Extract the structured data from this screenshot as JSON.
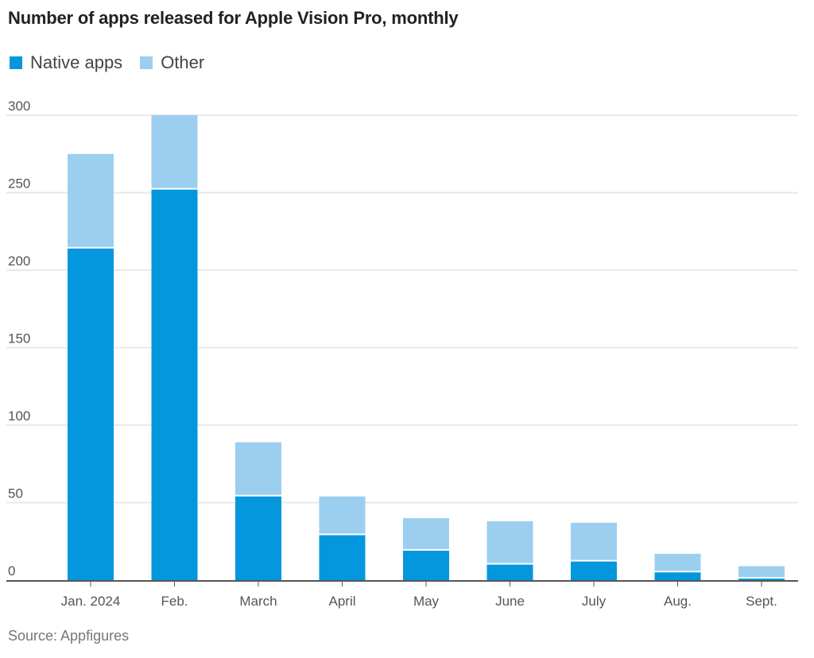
{
  "title": "Number of apps released for Apple Vision Pro, monthly",
  "source": "Source: Appfigures",
  "colors": {
    "native": "#0597de",
    "other": "#9ccfef",
    "grid": "#e9e9e9",
    "axis": "#555555"
  },
  "chart_data": {
    "type": "bar",
    "stacked": true,
    "title": "Number of apps released for Apple Vision Pro, monthly",
    "categories": [
      "Jan. 2024",
      "Feb.",
      "March",
      "April",
      "May",
      "June",
      "July",
      "Aug.",
      "Sept."
    ],
    "series": [
      {
        "name": "Native apps",
        "values": [
          214,
          252,
          54,
          29,
          19,
          10,
          12,
          5,
          1
        ]
      },
      {
        "name": "Other",
        "values": [
          61,
          48,
          35,
          25,
          21,
          28,
          25,
          12,
          8
        ]
      }
    ],
    "yticks": [
      "0",
      "50",
      "100",
      "150",
      "200",
      "250",
      "300"
    ],
    "ylim": [
      0,
      300
    ],
    "xlabel": "",
    "ylabel": "",
    "legend": "top-left",
    "grid": true
  }
}
